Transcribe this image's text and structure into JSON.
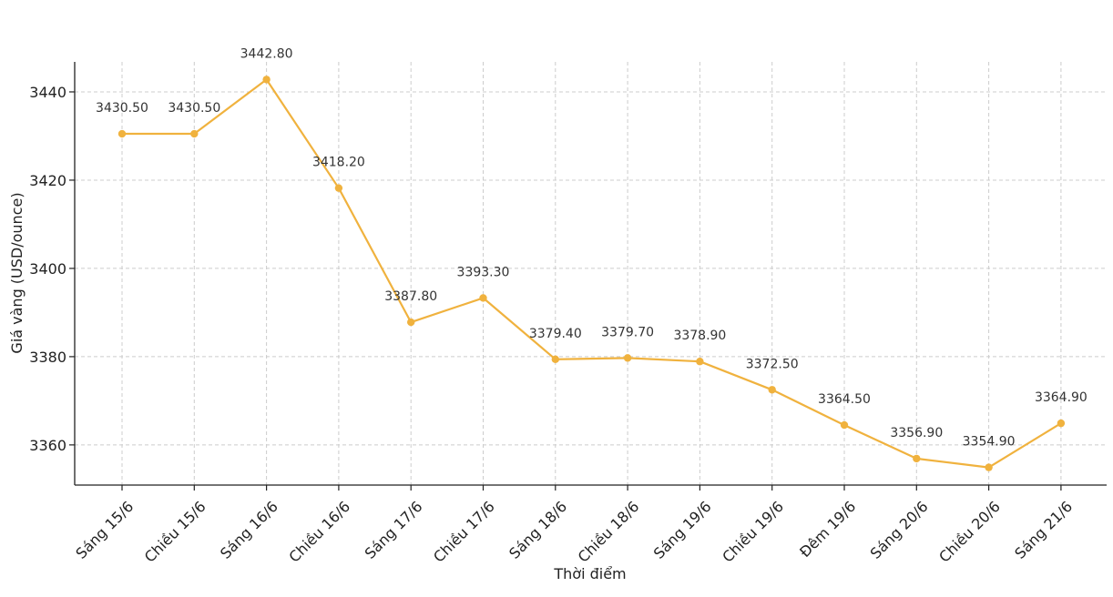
{
  "chart_data": {
    "type": "line",
    "title": "",
    "xlabel": "Thời điểm",
    "ylabel": "Giá vàng (USD/ounce)",
    "categories": [
      "Sáng 15/6",
      "Chiều 15/6",
      "Sáng 16/6",
      "Chiều 16/6",
      "Sáng 17/6",
      "Chiều 17/6",
      "Sáng 18/6",
      "Chiều 18/6",
      "Sáng 19/6",
      "Chiều 19/6",
      "Đêm 19/6",
      "Sáng 20/6",
      "Chiều 20/6",
      "Sáng 21/6"
    ],
    "values": [
      3430.5,
      3430.5,
      3442.8,
      3418.2,
      3387.8,
      3393.3,
      3379.4,
      3379.7,
      3378.9,
      3372.5,
      3364.5,
      3356.9,
      3354.9,
      3364.9
    ],
    "data_labels": [
      "3430.50",
      "3430.50",
      "3442.80",
      "3418.20",
      "3387.80",
      "3393.30",
      "3379.40",
      "3379.70",
      "3378.90",
      "3372.50",
      "3364.50",
      "3356.90",
      "3354.90",
      "3364.90"
    ],
    "ylim": [
      3350.9,
      3446.8
    ],
    "yticks": [
      3360,
      3380,
      3400,
      3420,
      3440
    ],
    "ytick_labels": [
      "3360",
      "3380",
      "3400",
      "3420",
      "3440"
    ],
    "grid": true,
    "line_color": "#F0B23E"
  }
}
